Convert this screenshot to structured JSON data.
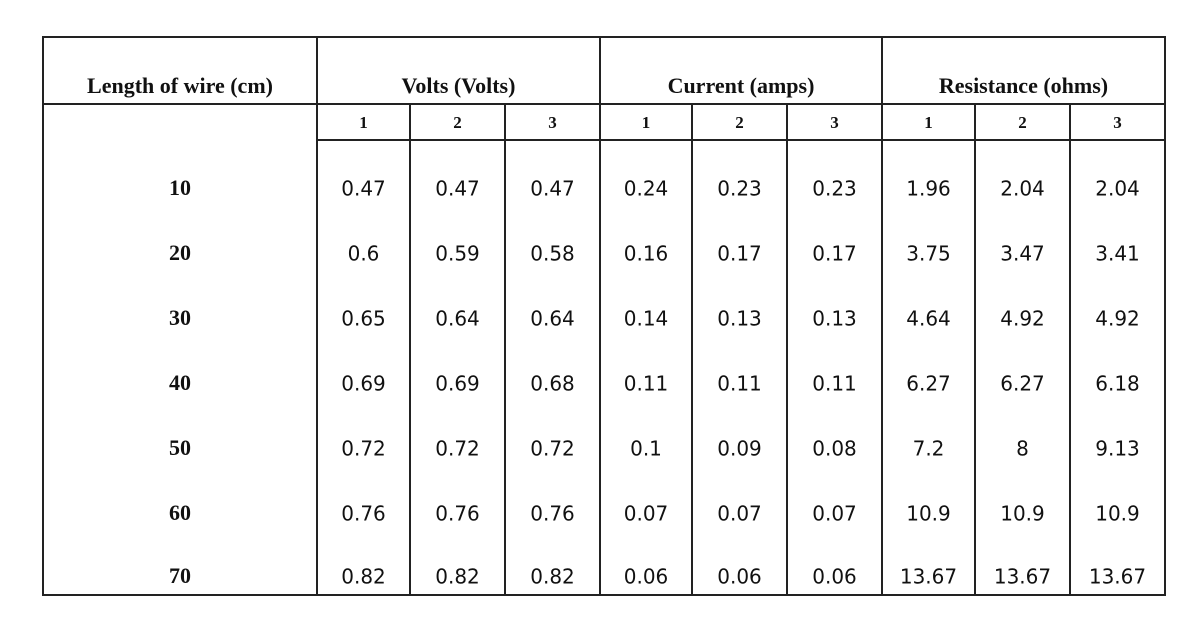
{
  "table": {
    "groups": [
      "Length of wire (cm)",
      "Volts (Volts)",
      "Current (amps)",
      "Resistance (ohms)"
    ],
    "subheaders": [
      1,
      2,
      3,
      1,
      2,
      3,
      1,
      2,
      3
    ],
    "rows": [
      [
        10,
        0.47,
        0.47,
        0.47,
        0.24,
        0.23,
        0.23,
        1.96,
        2.04,
        2.04
      ],
      [
        20,
        0.6,
        0.59,
        0.58,
        0.16,
        0.17,
        0.17,
        3.75,
        3.47,
        3.41
      ],
      [
        30,
        0.65,
        0.64,
        0.64,
        0.14,
        0.13,
        0.13,
        4.64,
        4.92,
        4.92
      ],
      [
        40,
        0.69,
        0.69,
        0.68,
        0.11,
        0.11,
        0.11,
        6.27,
        6.27,
        6.18
      ],
      [
        50,
        0.72,
        0.72,
        0.72,
        0.1,
        0.09,
        0.08,
        7.2,
        8,
        9.13
      ],
      [
        60,
        0.76,
        0.76,
        0.76,
        0.07,
        0.07,
        0.07,
        10.9,
        10.9,
        10.9
      ],
      [
        70,
        0.82,
        0.82,
        0.82,
        0.06,
        0.06,
        0.06,
        13.67,
        13.67,
        13.67
      ]
    ]
  }
}
